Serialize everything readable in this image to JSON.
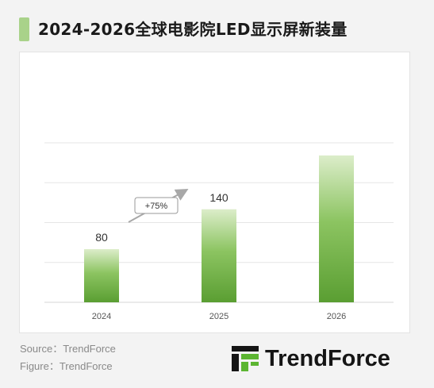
{
  "title": "2024-2026全球电影院LED显示屏新装量",
  "chart_data": {
    "type": "bar",
    "categories": [
      "2024",
      "2025",
      "2026"
    ],
    "series": [
      {
        "values": [
          80,
          140,
          null
        ]
      }
    ],
    "value_labels": [
      "80",
      "140",
      ""
    ],
    "annotation": {
      "text": "+75%",
      "from": "2024",
      "to": "2025"
    },
    "ylim": [
      0,
      250
    ],
    "grid": true,
    "colors": {
      "bar_top": "#dcedca",
      "bar_bottom": "#5a9e32",
      "grid": "#e6e6e6"
    }
  },
  "bar_2026_visual_value": 221,
  "source_line": "Source：TrendForce",
  "figure_line": "Figure：TrendForce",
  "logo": {
    "text": "TrendForce",
    "icon": "trendforce-logo-icon"
  }
}
